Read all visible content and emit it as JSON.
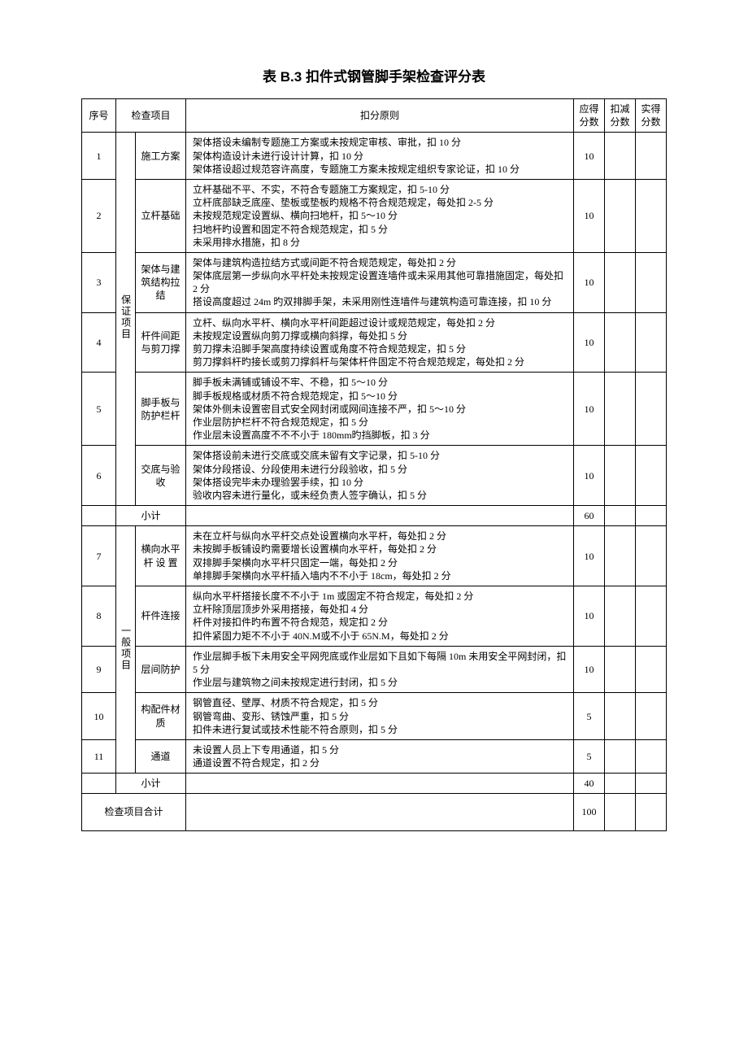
{
  "title": "表 B.3 扣件式钢管脚手架检查评分表",
  "headers": {
    "seq": "序号",
    "item": "检查项目",
    "rule": "扣分原则",
    "should": "应得分数",
    "deduct": "扣减分数",
    "actual": "实得分数"
  },
  "categories": [
    {
      "name": "保证项目"
    },
    {
      "name": "一般项目"
    }
  ],
  "rows": [
    {
      "seq": "1",
      "item": "施工方案",
      "rules": [
        "架体搭设未编制专题施工方案或未按规定审核、审批，扣 10 分",
        "架体构造设计未进行设计计算，扣 10 分",
        "架体搭设超过规范容许高度，专题施工方案未按规定组织专家论证，扣 10 分"
      ],
      "score": "10"
    },
    {
      "seq": "2",
      "item": "立杆基础",
      "rules": [
        "立杆基础不平、不实，不符合专题施工方案规定，扣 5-10 分",
        "立杆底部缺乏底座、垫板或垫板旳规格不符合规范规定，每处扣 2-5 分",
        "未按规范规定设置纵、横向扫地杆，扣 5～10 分",
        "扫地杆旳设置和固定不符合规范规定，扣 5 分",
        "未采用排水措施，扣 8 分"
      ],
      "score": "10"
    },
    {
      "seq": "3",
      "item": "架体与建筑结构拉结",
      "rules": [
        "架体与建筑构造拉结方式或间距不符合规范规定，每处扣 2 分",
        "架体底层第一步纵向水平杆处未按规定设置连墙件或未采用其他可靠措施固定，每处扣 2 分",
        "搭设高度超过 24m 旳双排脚手架，未采用刚性连墙件与建筑构造可靠连接，扣 10 分"
      ],
      "score": "10"
    },
    {
      "seq": "4",
      "item": "杆件间距与剪刀撑",
      "rules": [
        "立杆、纵向水平杆、横向水平杆间距超过设计或规范规定，每处扣 2 分",
        "未按规定设置纵向剪刀撑或横向斜撑，每处扣 5 分",
        "剪刀撑未沿脚手架高度持续设置或角度不符合规范规定，扣 5 分",
        "剪刀撑斜杆旳接长或剪刀撑斜杆与架体杆件固定不符合规范规定，每处扣 2 分"
      ],
      "score": "10"
    },
    {
      "seq": "5",
      "item": "脚手板与防护栏杆",
      "rules": [
        "脚手板未满铺或铺设不牢、不稳，扣 5～10 分",
        "脚手板规格或材质不符合规范规定，扣 5～10 分",
        "架体外侧未设置密目式安全网封闭或网间连接不严，扣 5～10 分",
        "作业层防护栏杆不符合规范规定，扣 5 分",
        "作业层未设置高度不不不小于 180mm旳挡脚板，扣 3 分"
      ],
      "score": "10"
    },
    {
      "seq": "6",
      "item": "交底与验　收",
      "rules": [
        "架体搭设前未进行交底或交底未留有文字记录，扣 5-10 分",
        "架体分段搭设、分段使用未进行分段验收，扣 5 分",
        "架体搭设完毕未办理验罢手续，扣 10 分",
        "验收内容未进行量化，或未经负责人签字确认，扣 5 分"
      ],
      "score": "10"
    },
    {
      "seq": "7",
      "item": "横向水平杆 设 置",
      "rules": [
        "未在立杆与纵向水平杆交点处设置横向水平杆，每处扣 2 分",
        "未按脚手板铺设旳需要增长设置横向水平杆，每处扣 2 分",
        "双排脚手架横向水平杆只固定一端，每处扣 2 分",
        "单排脚手架横向水平杆插入墙内不不小于 18cm，每处扣 2 分"
      ],
      "score": "10"
    },
    {
      "seq": "8",
      "item": "杆件连接",
      "rules": [
        "纵向水平杆搭接长度不不小于 1m 或固定不符合规定，每处扣 2 分",
        "立杆除顶层顶步外采用搭接，每处扣 4 分",
        "杆件对接扣件旳布置不符合规范，规定扣 2 分",
        "扣件紧固力矩不不小于 40N.M或不小于 65N.M，每处扣 2 分"
      ],
      "score": "10"
    },
    {
      "seq": "9",
      "item": "层间防护",
      "rules": [
        "作业层脚手板下未用安全平网兜底或作业层如下且如下每隔 10m 未用安全平网封闭，扣 5 分",
        "作业层与建筑物之间未按规定进行封闭，扣 5 分"
      ],
      "score": "10"
    },
    {
      "seq": "10",
      "item": "构配件材　质",
      "rules": [
        "钢管直径、壁厚、材质不符合规定，扣 5 分",
        "钢管弯曲、变形、锈蚀严重，扣 5 分",
        "扣件未进行复试或技术性能不符合原则，扣 5 分"
      ],
      "score": "5"
    },
    {
      "seq": "11",
      "item": "通道",
      "rules": [
        "未设置人员上下专用通道，扣 5 分",
        "通道设置不符合规定，扣 2 分"
      ],
      "score": "5"
    }
  ],
  "subtotals": [
    {
      "label": "小计",
      "score": "60"
    },
    {
      "label": "小计",
      "score": "40"
    }
  ],
  "total": {
    "label": "检查项目合计",
    "score": "100"
  }
}
